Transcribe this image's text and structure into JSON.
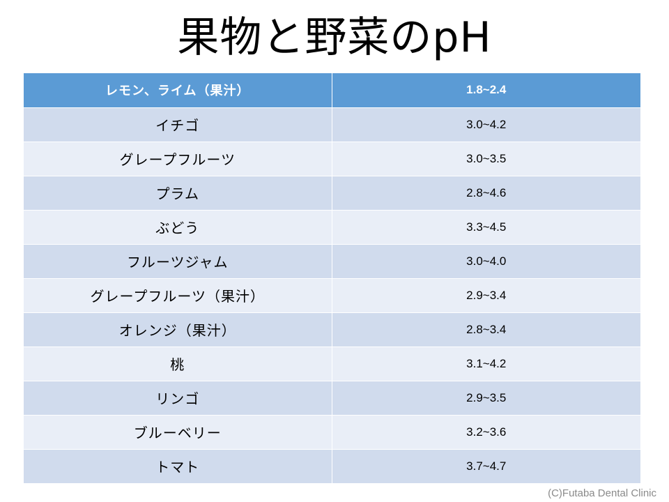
{
  "title": "果物と野菜のpH",
  "header": {
    "name": "レモン、ライム（果汁）",
    "value": "1.8~2.4"
  },
  "rows": [
    {
      "name": "イチゴ",
      "value": "3.0~4.2"
    },
    {
      "name": "グレープフルーツ",
      "value": "3.0~3.5"
    },
    {
      "name": "プラム",
      "value": "2.8~4.6"
    },
    {
      "name": "ぶどう",
      "value": "3.3~4.5"
    },
    {
      "name": "フルーツジャム",
      "value": "3.0~4.0"
    },
    {
      "name": "グレープフルーツ（果汁）",
      "value": "2.9~3.4"
    },
    {
      "name": "オレンジ（果汁）",
      "value": "2.8~3.4"
    },
    {
      "name": "桃",
      "value": "3.1~4.2"
    },
    {
      "name": "リンゴ",
      "value": "2.9~3.5"
    },
    {
      "name": "ブルーベリー",
      "value": "3.2~3.6"
    },
    {
      "name": "トマト",
      "value": "3.7~4.7"
    }
  ],
  "credit": "(C)Futaba Dental Clinic",
  "colors": {
    "header_bg": "#5b9bd5",
    "row_dark": "#d0dbed",
    "row_light": "#e9eef7"
  }
}
